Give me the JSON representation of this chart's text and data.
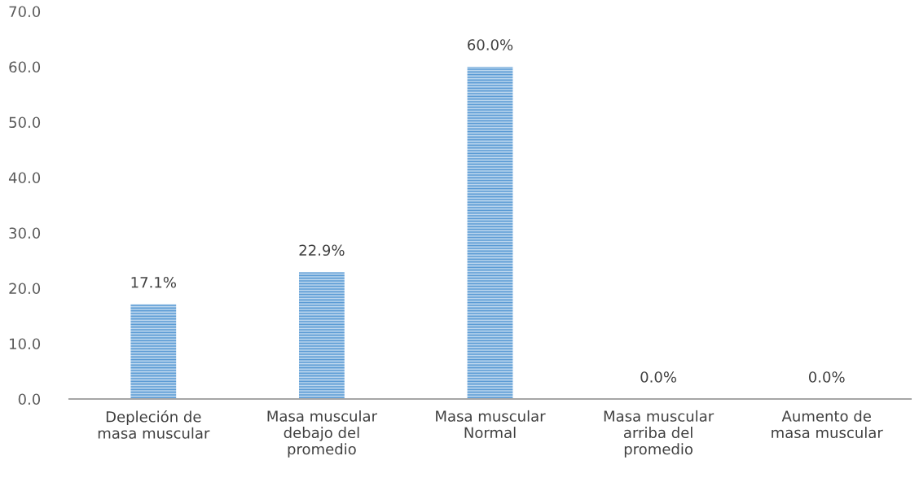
{
  "chart_data": {
    "type": "bar",
    "categories": [
      "Depleción de\nmasa muscular",
      "Masa muscular\ndebajo del\npromedio",
      "Masa muscular\nNormal",
      "Masa muscular\narriba del\npromedio",
      "Aumento de\nmasa muscular"
    ],
    "values": [
      17.1,
      22.9,
      60.0,
      0.0,
      0.0
    ],
    "value_labels": [
      "17.1%",
      "22.9%",
      "60.0%",
      "0.0%",
      "0.0%"
    ],
    "color": "#5b9bd5",
    "ylim": [
      0,
      70
    ],
    "yticks": [
      {
        "value": 0,
        "label": "0.0"
      },
      {
        "value": 10,
        "label": "10.0"
      },
      {
        "value": 20,
        "label": "20.0"
      },
      {
        "value": 30,
        "label": "30.0"
      },
      {
        "value": 40,
        "label": "40.0"
      },
      {
        "value": 50,
        "label": "50.0"
      },
      {
        "value": 60,
        "label": "60.0"
      },
      {
        "value": 70,
        "label": "70.0"
      }
    ],
    "grid": false,
    "legend": false
  }
}
